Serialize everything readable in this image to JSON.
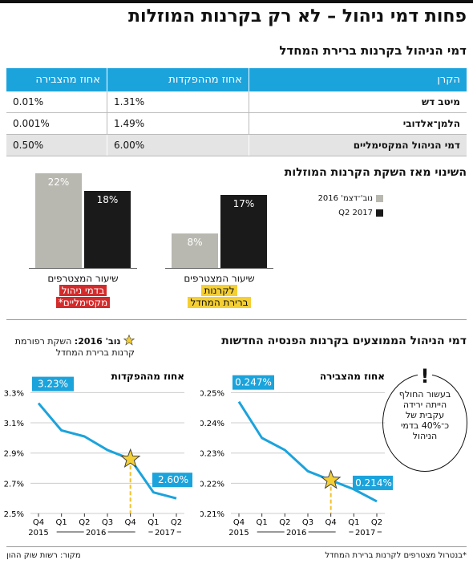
{
  "title": "פחות דמי ניהול – לא רק בקרנות המוזלות",
  "table": {
    "title": "דמי הניהול בקרנות ברירת המחדל",
    "headers": [
      "הקרן",
      "אחוז מההפקדות",
      "אחוז מהצבירה"
    ],
    "rows": [
      [
        "מיטב דש",
        "1.31%",
        "0.01%"
      ],
      [
        "הלמן־אלדובי",
        "1.49%",
        "0.001%"
      ],
      [
        "דמי הניהול המקסימליים",
        "6.00%",
        "0.50%"
      ]
    ]
  },
  "change": {
    "title": "השינוי מאז השקת הקרנות המוזלות",
    "legend": [
      "נוב'־דצמ' 2016",
      "Q2 2017"
    ],
    "colors": {
      "period1": "#b8b8b0",
      "period2": "#1a1a1a"
    },
    "default_funds": {
      "value_label_1": "8%",
      "value_label_2": "17%",
      "caption": "שיעור המצטרפים",
      "tag_line1": "לקרנות",
      "tag_line2": "ברירת המחדל"
    },
    "max_fees": {
      "value_label_1": "22%",
      "value_label_2": "18%",
      "caption": "שיעור המצטרפים",
      "tag_line1": "בדמי ניהול",
      "tag_line2": "מקסימליים*"
    }
  },
  "lines": {
    "title": "דמי הניהול הממוצעים בקרנות הפנסיה החדשות",
    "star_note_bold": "נוב' 2016:",
    "star_note_text": "השקת רפורמת קרנות ברירת המחדל",
    "callout": {
      "mark": "!",
      "text": "בעשור החולף הייתה ירידה עקבית של כ־40% בדמי הניהול"
    },
    "year_2016": "2016",
    "year_2017": "2017"
  },
  "footer": {
    "source": "מקור: רשות שוק ההון",
    "note": "*בנטרול מצטרפים לקרנות ברירת המחדל"
  },
  "chart_data": [
    {
      "type": "bar",
      "title": "השינוי מאז השקת הקרנות המוזלות",
      "categories": [
        "שיעור המצטרפים בדמי ניהול מקסימליים*",
        "שיעור המצטרפים לקרנות ברירת המחדל"
      ],
      "series": [
        {
          "name": "נוב'־דצמ' 2016",
          "values": [
            22,
            8
          ]
        },
        {
          "name": "Q2 2017",
          "values": [
            18,
            17
          ]
        }
      ],
      "ylim": [
        0,
        25
      ]
    },
    {
      "type": "line",
      "title": "אחוז מההפקדות",
      "x": [
        "Q4 2015",
        "Q1 2016",
        "Q2 2016",
        "Q3 2016",
        "Q4 2016",
        "Q1 2017",
        "Q2 2017"
      ],
      "values": [
        3.23,
        3.05,
        3.01,
        2.92,
        2.86,
        2.64,
        2.6
      ],
      "ylim": [
        2.5,
        3.35
      ],
      "yticks": [
        "2.5%",
        "2.7%",
        "2.9%",
        "3.1%",
        "3.3%"
      ],
      "start_label": "3.23%",
      "end_label": "2.60%",
      "star_index": 4,
      "color": "#1ba3dc"
    },
    {
      "type": "line",
      "title": "אחוז מהצבירה",
      "x": [
        "Q4 2015",
        "Q1 2016",
        "Q2 2016",
        "Q3 2016",
        "Q4 2016",
        "Q1 2017",
        "Q2 2017"
      ],
      "values": [
        0.247,
        0.235,
        0.231,
        0.224,
        0.221,
        0.218,
        0.214
      ],
      "ylim": [
        0.21,
        0.2525
      ],
      "yticks": [
        "0.21%",
        "0.22%",
        "0.23%",
        "0.24%",
        "0.25%"
      ],
      "start_label": "0.247%",
      "end_label": "0.214%",
      "star_index": 4,
      "color": "#1ba3dc"
    }
  ]
}
